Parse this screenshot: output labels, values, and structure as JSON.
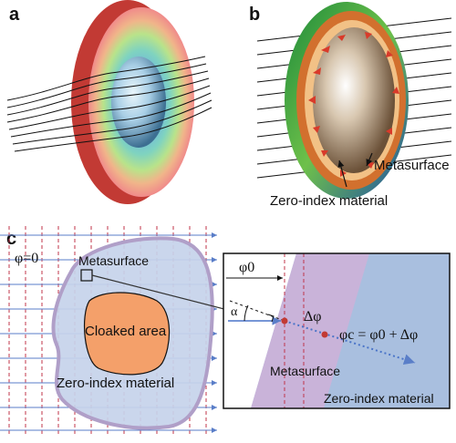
{
  "panels": {
    "a": {
      "label": "a"
    },
    "b": {
      "label": "b",
      "metasurface_label": "Metasurface",
      "zero_index_label": "Zero-index material"
    },
    "c": {
      "label": "c",
      "phase_label": "φ=0",
      "metasurface_label": "Metasurface",
      "cloaked_label": "Cloaked area",
      "zero_index_label": "Zero-index material"
    }
  },
  "inset": {
    "phi0_label": "φ0",
    "alpha_label": "α",
    "delta_phi_label": "Δφ",
    "phic_label": "φc = φ0 + Δφ",
    "metasurface_label": "Metasurface",
    "zero_index_label": "Zero-index material"
  },
  "colors": {
    "grid_blue": "#5a7ec8",
    "grid_red": "#c0344a",
    "region_fill": "#c5d3ea",
    "region_border": "#b09fc8",
    "cloak_fill": "#f4a06a",
    "inset_blue": "#a9bfdf",
    "inset_purple": "#c9b3d9"
  }
}
